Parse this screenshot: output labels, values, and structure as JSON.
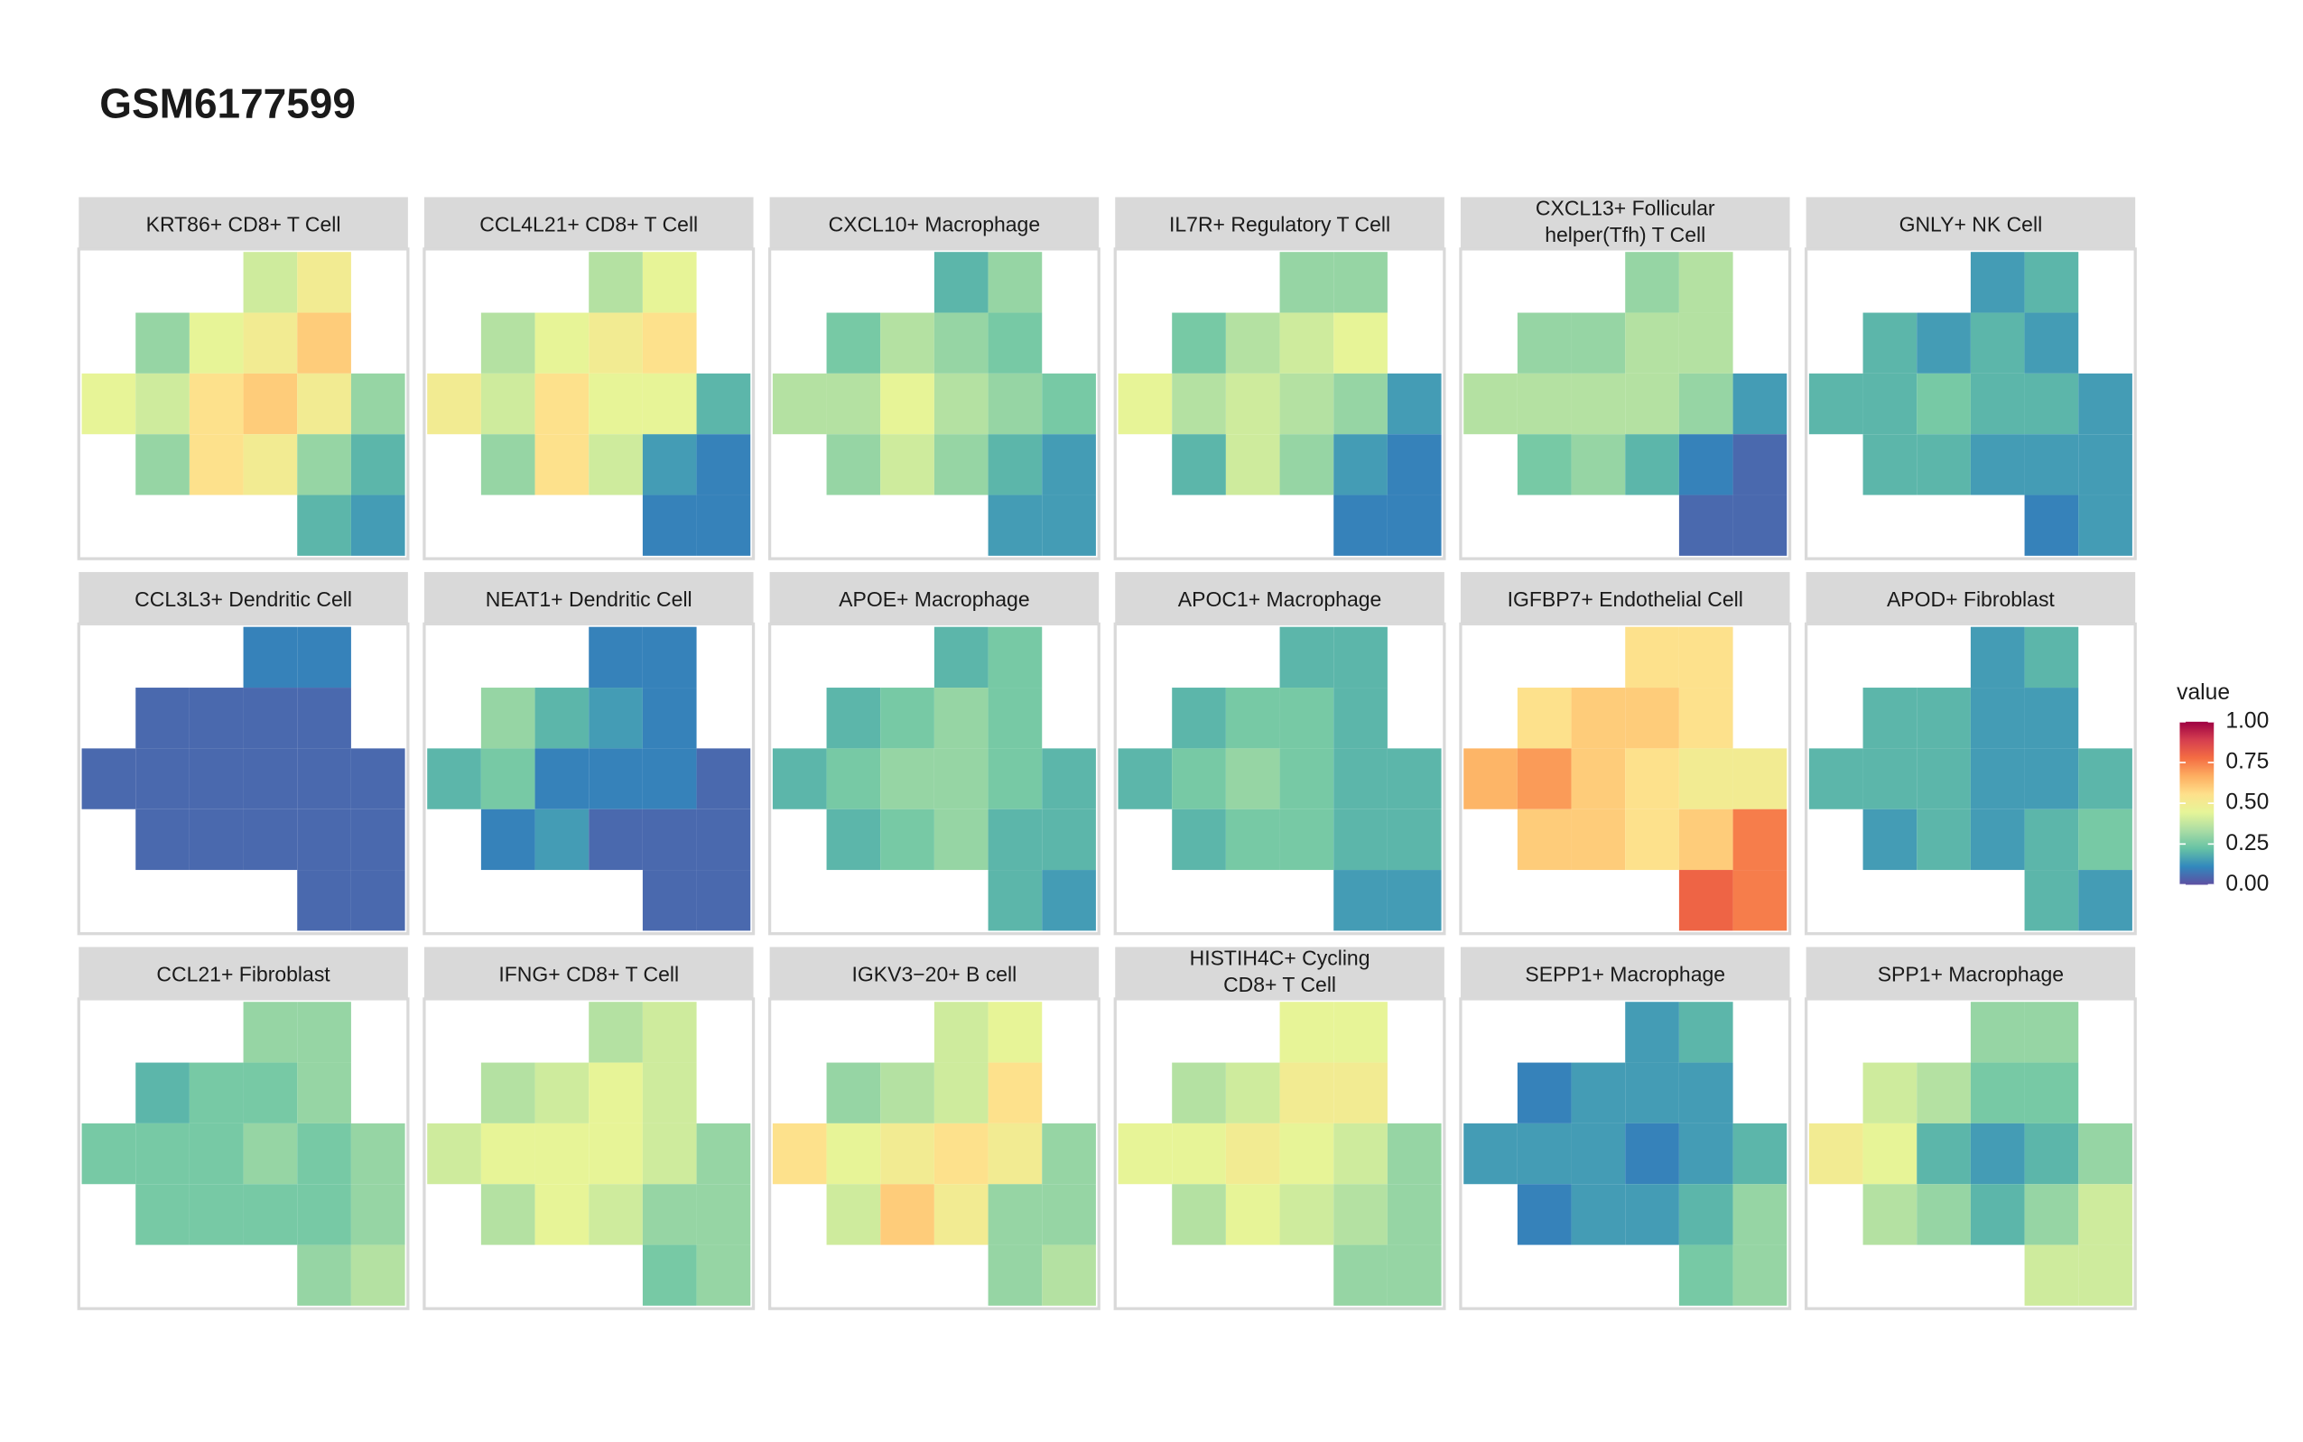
{
  "chart_data": {
    "type": "heatmap",
    "title": "GSM6177599",
    "legend_title": "value",
    "colors": [
      "#5e4fa2",
      "#3288bd",
      "#66c2a5",
      "#abdda4",
      "#e6f598",
      "#fee08b",
      "#fdae61",
      "#f46d43",
      "#d53e4f",
      "#9e0142"
    ],
    "clim": [
      0,
      1
    ],
    "cticks": [
      {
        "value": 0,
        "label": "0.00"
      },
      {
        "value": 0.25,
        "label": "0.25"
      },
      {
        "value": 0.5,
        "label": "0.50"
      },
      {
        "value": 0.75,
        "label": "0.75"
      },
      {
        "value": 1,
        "label": "1.00"
      }
    ],
    "panels": [
      {
        "title": [
          "KRT86+ CD8+ T Cell"
        ],
        "values": [
          [
            null,
            null,
            null,
            0.4,
            0.5,
            null
          ],
          [
            null,
            0.3,
            0.45,
            0.5,
            0.6,
            null
          ],
          [
            0.45,
            0.4,
            0.55,
            0.6,
            0.5,
            0.3
          ],
          [
            null,
            0.3,
            0.55,
            0.5,
            0.3,
            0.2
          ],
          [
            null,
            null,
            null,
            null,
            0.2,
            0.15
          ]
        ]
      },
      {
        "title": [
          "CCL4L21+ CD8+ T Cell"
        ],
        "values": [
          [
            null,
            null,
            null,
            0.35,
            0.45,
            null
          ],
          [
            null,
            0.35,
            0.45,
            0.5,
            0.55,
            null
          ],
          [
            0.5,
            0.4,
            0.55,
            0.45,
            0.45,
            0.2
          ],
          [
            null,
            0.3,
            0.55,
            0.4,
            0.15,
            0.1
          ],
          [
            null,
            null,
            null,
            null,
            0.1,
            0.1
          ]
        ]
      },
      {
        "title": [
          "CXCL10+ Macrophage"
        ],
        "values": [
          [
            null,
            null,
            null,
            0.2,
            0.3,
            null
          ],
          [
            null,
            0.25,
            0.35,
            0.3,
            0.25,
            null
          ],
          [
            0.35,
            0.35,
            0.45,
            0.35,
            0.3,
            0.25
          ],
          [
            null,
            0.3,
            0.4,
            0.3,
            0.2,
            0.15
          ],
          [
            null,
            null,
            null,
            null,
            0.15,
            0.15
          ]
        ]
      },
      {
        "title": [
          "IL7R+ Regulatory T Cell"
        ],
        "values": [
          [
            null,
            null,
            null,
            0.3,
            0.3,
            null
          ],
          [
            null,
            0.25,
            0.35,
            0.4,
            0.45,
            null
          ],
          [
            0.45,
            0.35,
            0.4,
            0.35,
            0.3,
            0.15
          ],
          [
            null,
            0.2,
            0.4,
            0.3,
            0.15,
            0.1
          ],
          [
            null,
            null,
            null,
            null,
            0.1,
            0.1
          ]
        ]
      },
      {
        "title": [
          "CXCL13+ Follicular",
          "helper(Tfh) T Cell"
        ],
        "values": [
          [
            null,
            null,
            null,
            0.3,
            0.35,
            null
          ],
          [
            null,
            0.3,
            0.3,
            0.35,
            0.35,
            null
          ],
          [
            0.35,
            0.35,
            0.35,
            0.35,
            0.3,
            0.15
          ],
          [
            null,
            0.25,
            0.3,
            0.2,
            0.1,
            0.05
          ],
          [
            null,
            null,
            null,
            null,
            0.05,
            0.05
          ]
        ]
      },
      {
        "title": [
          "GNLY+ NK Cell"
        ],
        "values": [
          [
            null,
            null,
            null,
            0.15,
            0.2,
            null
          ],
          [
            null,
            0.2,
            0.15,
            0.2,
            0.15,
            null
          ],
          [
            0.2,
            0.2,
            0.25,
            0.2,
            0.2,
            0.15
          ],
          [
            null,
            0.2,
            0.2,
            0.15,
            0.15,
            0.15
          ],
          [
            null,
            null,
            null,
            null,
            0.1,
            0.15
          ]
        ]
      },
      {
        "title": [
          "CCL3L3+ Dendritic Cell"
        ],
        "values": [
          [
            null,
            null,
            null,
            0.1,
            0.1,
            null
          ],
          [
            null,
            0.05,
            0.05,
            0.05,
            0.05,
            null
          ],
          [
            0.05,
            0.05,
            0.05,
            0.05,
            0.05,
            0.05
          ],
          [
            null,
            0.05,
            0.05,
            0.05,
            0.05,
            0.05
          ],
          [
            null,
            null,
            null,
            null,
            0.05,
            0.05
          ]
        ]
      },
      {
        "title": [
          "NEAT1+ Dendritic Cell"
        ],
        "values": [
          [
            null,
            null,
            null,
            0.1,
            0.1,
            null
          ],
          [
            null,
            0.3,
            0.2,
            0.15,
            0.1,
            null
          ],
          [
            0.2,
            0.25,
            0.1,
            0.1,
            0.1,
            0.05
          ],
          [
            null,
            0.1,
            0.15,
            0.05,
            0.05,
            0.05
          ],
          [
            null,
            null,
            null,
            null,
            0.05,
            0.05
          ]
        ]
      },
      {
        "title": [
          "APOE+ Macrophage"
        ],
        "values": [
          [
            null,
            null,
            null,
            0.2,
            0.25,
            null
          ],
          [
            null,
            0.2,
            0.25,
            0.3,
            0.25,
            null
          ],
          [
            0.2,
            0.25,
            0.3,
            0.3,
            0.25,
            0.2
          ],
          [
            null,
            0.2,
            0.25,
            0.3,
            0.2,
            0.2
          ],
          [
            null,
            null,
            null,
            null,
            0.2,
            0.15
          ]
        ]
      },
      {
        "title": [
          "APOC1+ Macrophage"
        ],
        "values": [
          [
            null,
            null,
            null,
            0.2,
            0.2,
            null
          ],
          [
            null,
            0.2,
            0.25,
            0.25,
            0.2,
            null
          ],
          [
            0.2,
            0.25,
            0.3,
            0.25,
            0.2,
            0.2
          ],
          [
            null,
            0.2,
            0.25,
            0.25,
            0.2,
            0.2
          ],
          [
            null,
            null,
            null,
            null,
            0.15,
            0.15
          ]
        ]
      },
      {
        "title": [
          "IGFBP7+ Endothelial Cell"
        ],
        "values": [
          [
            null,
            null,
            null,
            0.55,
            0.55,
            null
          ],
          [
            null,
            0.55,
            0.6,
            0.6,
            0.55,
            null
          ],
          [
            0.65,
            0.7,
            0.6,
            0.55,
            0.5,
            0.5
          ],
          [
            null,
            0.6,
            0.6,
            0.55,
            0.6,
            0.75
          ],
          [
            null,
            null,
            null,
            null,
            0.8,
            0.75
          ]
        ]
      },
      {
        "title": [
          "APOD+ Fibroblast"
        ],
        "values": [
          [
            null,
            null,
            null,
            0.15,
            0.2,
            null
          ],
          [
            null,
            0.2,
            0.2,
            0.15,
            0.15,
            null
          ],
          [
            0.2,
            0.2,
            0.2,
            0.15,
            0.15,
            0.2
          ],
          [
            null,
            0.15,
            0.2,
            0.15,
            0.2,
            0.25
          ],
          [
            null,
            null,
            null,
            null,
            0.2,
            0.15
          ]
        ]
      },
      {
        "title": [
          "CCL21+ Fibroblast"
        ],
        "values": [
          [
            null,
            null,
            null,
            0.3,
            0.3,
            null
          ],
          [
            null,
            0.2,
            0.25,
            0.25,
            0.3,
            null
          ],
          [
            0.25,
            0.25,
            0.25,
            0.3,
            0.25,
            0.3
          ],
          [
            null,
            0.25,
            0.25,
            0.25,
            0.25,
            0.3
          ],
          [
            null,
            null,
            null,
            null,
            0.3,
            0.35
          ]
        ]
      },
      {
        "title": [
          "IFNG+ CD8+ T Cell"
        ],
        "values": [
          [
            null,
            null,
            null,
            0.35,
            0.4,
            null
          ],
          [
            null,
            0.35,
            0.4,
            0.45,
            0.4,
            null
          ],
          [
            0.4,
            0.45,
            0.45,
            0.45,
            0.4,
            0.3
          ],
          [
            null,
            0.35,
            0.45,
            0.4,
            0.3,
            0.3
          ],
          [
            null,
            null,
            null,
            null,
            0.25,
            0.3
          ]
        ]
      },
      {
        "title": [
          "IGKV3−20+ B cell"
        ],
        "values": [
          [
            null,
            null,
            null,
            0.4,
            0.45,
            null
          ],
          [
            null,
            0.3,
            0.35,
            0.4,
            0.55,
            null
          ],
          [
            0.55,
            0.45,
            0.5,
            0.55,
            0.5,
            0.3
          ],
          [
            null,
            0.4,
            0.6,
            0.5,
            0.3,
            0.3
          ],
          [
            null,
            null,
            null,
            null,
            0.3,
            0.35
          ]
        ]
      },
      {
        "title": [
          "HISTIH4C+ Cycling",
          "CD8+ T Cell"
        ],
        "values": [
          [
            null,
            null,
            null,
            0.45,
            0.45,
            null
          ],
          [
            null,
            0.35,
            0.4,
            0.5,
            0.5,
            null
          ],
          [
            0.45,
            0.45,
            0.5,
            0.45,
            0.4,
            0.3
          ],
          [
            null,
            0.35,
            0.45,
            0.4,
            0.35,
            0.3
          ],
          [
            null,
            null,
            null,
            null,
            0.3,
            0.3
          ]
        ]
      },
      {
        "title": [
          "SEPP1+ Macrophage"
        ],
        "values": [
          [
            null,
            null,
            null,
            0.15,
            0.2,
            null
          ],
          [
            null,
            0.1,
            0.15,
            0.15,
            0.15,
            null
          ],
          [
            0.15,
            0.15,
            0.15,
            0.1,
            0.15,
            0.2
          ],
          [
            null,
            0.1,
            0.15,
            0.15,
            0.2,
            0.3
          ],
          [
            null,
            null,
            null,
            null,
            0.25,
            0.3
          ]
        ]
      },
      {
        "title": [
          "SPP1+ Macrophage"
        ],
        "values": [
          [
            null,
            null,
            null,
            0.3,
            0.3,
            null
          ],
          [
            null,
            0.4,
            0.35,
            0.25,
            0.25,
            null
          ],
          [
            0.5,
            0.45,
            0.2,
            0.15,
            0.2,
            0.3
          ],
          [
            null,
            0.35,
            0.3,
            0.2,
            0.3,
            0.4
          ],
          [
            null,
            null,
            null,
            null,
            0.4,
            0.4
          ]
        ]
      }
    ]
  }
}
